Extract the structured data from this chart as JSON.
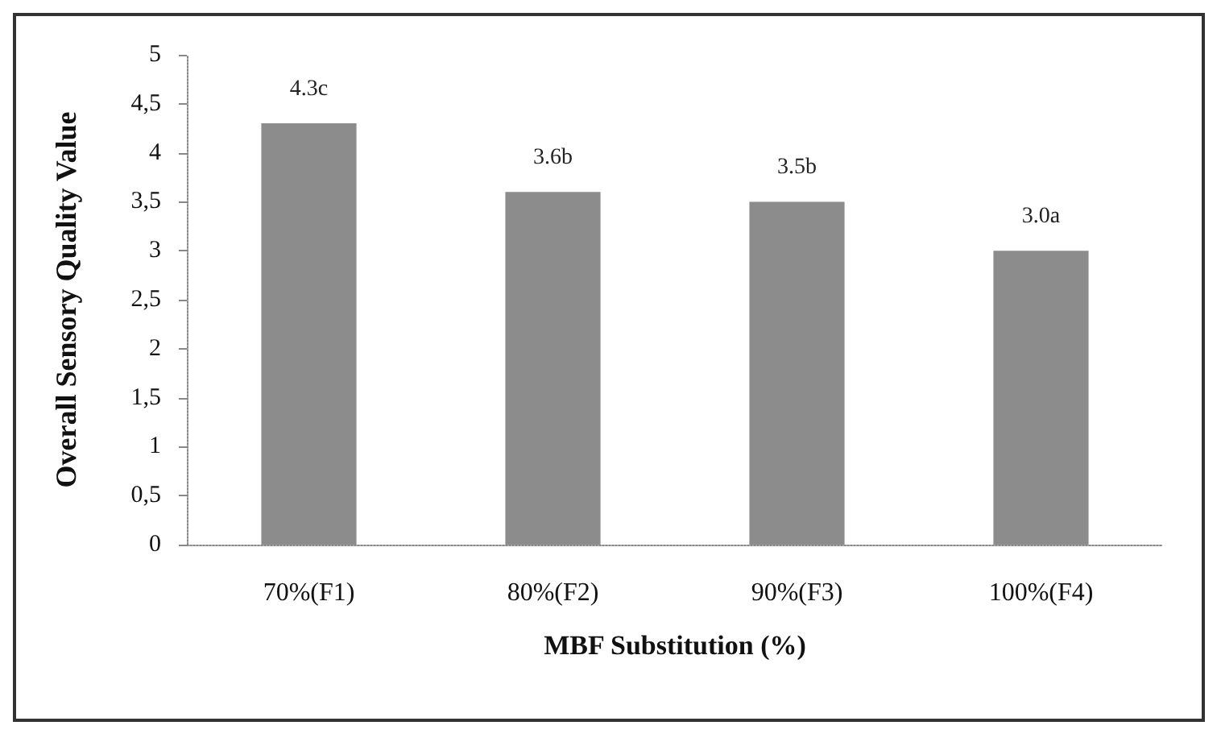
{
  "chart_data": {
    "type": "bar",
    "xlabel": "MBF Substitution (%)",
    "ylabel": "Overall Sensory Quality Value",
    "categories": [
      "70%(F1)",
      "80%(F2)",
      "90%(F3)",
      "100%(F4)"
    ],
    "values": [
      4.3,
      3.6,
      3.5,
      3.0
    ],
    "value_labels": [
      "4.3c",
      "3.6b",
      "3.5b",
      "3.0a"
    ],
    "color": "#8c8c8c",
    "ylim": [
      0,
      5
    ],
    "yticks": [
      0,
      {
        "value": 0.5,
        "label": "0,5"
      },
      1,
      {
        "value": 1.5,
        "label": "1,5"
      },
      2,
      {
        "value": 2.5,
        "label": "2,5"
      },
      3,
      {
        "value": 3.5,
        "label": "3,5"
      },
      4,
      {
        "value": 4.5,
        "label": "4,5"
      },
      5
    ],
    "grid": false
  }
}
